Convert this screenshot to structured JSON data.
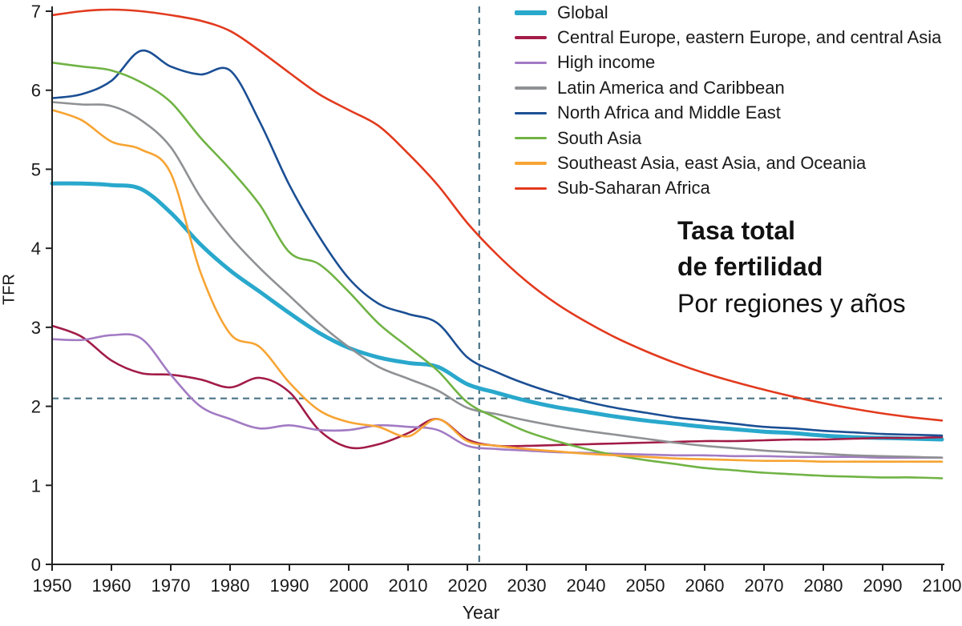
{
  "annotation": {
    "line1": "Tasa total",
    "line2": "de fertilidad",
    "line3": "Por regiones y años"
  },
  "chart_data": {
    "type": "line",
    "title": "",
    "xlabel": "Year",
    "ylabel": "TFR",
    "xlim": [
      1950,
      2100
    ],
    "ylim": [
      0,
      7
    ],
    "x_ticks": [
      1950,
      1960,
      1970,
      1980,
      1990,
      2000,
      2010,
      2020,
      2030,
      2040,
      2050,
      2060,
      2070,
      2080,
      2090,
      2100
    ],
    "y_ticks": [
      0,
      1,
      2,
      3,
      4,
      5,
      6,
      7
    ],
    "grid": false,
    "legend_position": "top-right-inside",
    "reference_lines": {
      "horizontal_tfr": 2.1,
      "vertical_year": 2022,
      "color": "#4A7386",
      "style": "dashed"
    },
    "x": [
      1950,
      1955,
      1960,
      1965,
      1970,
      1975,
      1980,
      1985,
      1990,
      1995,
      2000,
      2005,
      2010,
      2015,
      2020,
      2025,
      2030,
      2035,
      2040,
      2045,
      2050,
      2055,
      2060,
      2065,
      2070,
      2075,
      2080,
      2085,
      2090,
      2095,
      2100
    ],
    "series": [
      {
        "id": "global",
        "name": "Global",
        "color": "#29A8CC",
        "width": 5,
        "values": [
          4.82,
          4.82,
          4.8,
          4.75,
          4.45,
          4.05,
          3.72,
          3.45,
          3.18,
          2.93,
          2.74,
          2.62,
          2.55,
          2.5,
          2.28,
          2.17,
          2.07,
          1.99,
          1.93,
          1.87,
          1.82,
          1.78,
          1.74,
          1.71,
          1.68,
          1.66,
          1.63,
          1.61,
          1.6,
          1.59,
          1.58
        ]
      },
      {
        "id": "central-europe-eastern-europe-central-asia",
        "name": "Central Europe, eastern Europe, and central Asia",
        "color": "#A21C47",
        "width": 2.6,
        "values": [
          3.02,
          2.88,
          2.58,
          2.42,
          2.4,
          2.34,
          2.24,
          2.36,
          2.18,
          1.7,
          1.48,
          1.52,
          1.66,
          1.84,
          1.58,
          1.5,
          1.5,
          1.51,
          1.52,
          1.53,
          1.54,
          1.55,
          1.56,
          1.56,
          1.57,
          1.58,
          1.58,
          1.59,
          1.6,
          1.6,
          1.61
        ]
      },
      {
        "id": "high-income",
        "name": "High income",
        "color": "#A27BC4",
        "width": 2.6,
        "values": [
          2.85,
          2.84,
          2.9,
          2.86,
          2.4,
          2.0,
          1.84,
          1.72,
          1.76,
          1.7,
          1.7,
          1.76,
          1.74,
          1.7,
          1.5,
          1.46,
          1.44,
          1.42,
          1.41,
          1.4,
          1.39,
          1.38,
          1.38,
          1.37,
          1.37,
          1.36,
          1.36,
          1.36,
          1.35,
          1.35,
          1.35
        ]
      },
      {
        "id": "latin-america-caribbean",
        "name": "Latin America and Caribbean",
        "color": "#8F9194",
        "width": 2.6,
        "values": [
          5.85,
          5.82,
          5.8,
          5.62,
          5.28,
          4.65,
          4.15,
          3.75,
          3.4,
          3.05,
          2.75,
          2.5,
          2.35,
          2.2,
          1.98,
          1.9,
          1.82,
          1.75,
          1.69,
          1.64,
          1.59,
          1.54,
          1.5,
          1.47,
          1.44,
          1.42,
          1.4,
          1.38,
          1.37,
          1.36,
          1.35
        ]
      },
      {
        "id": "north-africa-middle-east",
        "name": "North Africa and Middle East",
        "color": "#1B4F94",
        "width": 2.6,
        "values": [
          5.9,
          5.95,
          6.12,
          6.5,
          6.3,
          6.2,
          6.25,
          5.6,
          4.8,
          4.15,
          3.62,
          3.3,
          3.17,
          3.05,
          2.62,
          2.43,
          2.28,
          2.16,
          2.06,
          1.98,
          1.92,
          1.86,
          1.82,
          1.78,
          1.74,
          1.72,
          1.69,
          1.67,
          1.65,
          1.64,
          1.63
        ]
      },
      {
        "id": "south-asia",
        "name": "South Asia",
        "color": "#70B344",
        "width": 2.6,
        "values": [
          6.35,
          6.3,
          6.25,
          6.1,
          5.85,
          5.4,
          5.0,
          4.55,
          3.95,
          3.8,
          3.45,
          3.05,
          2.75,
          2.45,
          2.05,
          1.85,
          1.68,
          1.56,
          1.46,
          1.38,
          1.32,
          1.27,
          1.22,
          1.19,
          1.16,
          1.14,
          1.12,
          1.11,
          1.1,
          1.1,
          1.09
        ]
      },
      {
        "id": "southeast-asia-east-asia-oceania",
        "name": "Southeast Asia, east Asia, and Oceania",
        "color": "#F7A433",
        "width": 2.6,
        "values": [
          5.75,
          5.62,
          5.35,
          5.25,
          4.95,
          3.7,
          2.92,
          2.75,
          2.3,
          1.95,
          1.8,
          1.74,
          1.62,
          1.84,
          1.56,
          1.5,
          1.46,
          1.43,
          1.4,
          1.38,
          1.36,
          1.34,
          1.33,
          1.32,
          1.31,
          1.31,
          1.3,
          1.3,
          1.3,
          1.3,
          1.3
        ]
      },
      {
        "id": "sub-saharan-africa",
        "name": "Sub-Saharan Africa",
        "color": "#E23A1E",
        "width": 2.6,
        "values": [
          6.95,
          7.0,
          7.02,
          7.0,
          6.95,
          6.88,
          6.75,
          6.5,
          6.22,
          5.95,
          5.75,
          5.55,
          5.2,
          4.8,
          4.32,
          3.92,
          3.58,
          3.3,
          3.07,
          2.87,
          2.7,
          2.55,
          2.42,
          2.31,
          2.21,
          2.12,
          2.04,
          1.97,
          1.91,
          1.86,
          1.82
        ]
      }
    ],
    "annotations": [
      "Tasa total",
      "de fertilidad",
      "Por regiones y años"
    ]
  }
}
